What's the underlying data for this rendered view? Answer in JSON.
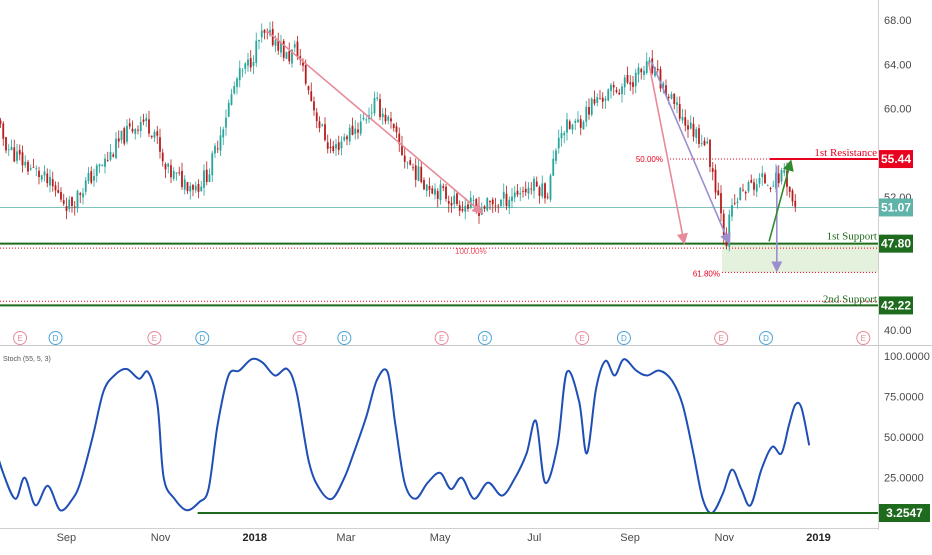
{
  "colors": {
    "bull": "#26a69a",
    "bear": "#b71c1c",
    "resistance": "#e8001e",
    "support": "#1e6b1e",
    "stoch": "#1f4fb5",
    "last_price": "#5fb3a8",
    "projection_down": "#e88a99",
    "projection_purple": "#9b8fd0",
    "projection_up": "#2e8b2e",
    "zone": "#e4f1dc"
  },
  "chart_data": [
    {
      "type": "candlestick",
      "title": "",
      "x_ticks": [
        "Sep",
        "Nov",
        "2018",
        "Mar",
        "May",
        "Jul",
        "Sep",
        "Nov",
        "2019"
      ],
      "y_ticks": [
        "68.00",
        "64.00",
        "60.00",
        "52.00",
        "40.00"
      ],
      "ylim": [
        40,
        68
      ],
      "grid": false,
      "series": [
        {
          "name": "",
          "close_path": [
            [
              "2017-07-15",
              59.5
            ],
            [
              "2017-07-25",
              56.5
            ],
            [
              "2017-08-05",
              55.0
            ],
            [
              "2017-08-15",
              54.0
            ],
            [
              "2017-08-25",
              52.5
            ],
            [
              "2017-09-03",
              51.2
            ],
            [
              "2017-09-15",
              53.5
            ],
            [
              "2017-09-28",
              55.5
            ],
            [
              "2017-10-08",
              57.5
            ],
            [
              "2017-10-20",
              59.0
            ],
            [
              "2017-10-28",
              58.0
            ],
            [
              "2017-11-03",
              54.5
            ],
            [
              "2017-11-15",
              53.5
            ],
            [
              "2017-11-25",
              53.0
            ],
            [
              "2017-12-03",
              54.5
            ],
            [
              "2017-12-10",
              58.0
            ],
            [
              "2017-12-20",
              62.5
            ],
            [
              "2017-12-28",
              64.0
            ],
            [
              "2018-01-05",
              66.5
            ],
            [
              "2018-01-15",
              66.2
            ],
            [
              "2018-01-22",
              64.5
            ],
            [
              "2018-01-28",
              65.5
            ],
            [
              "2018-02-05",
              61.5
            ],
            [
              "2018-02-12",
              58.5
            ],
            [
              "2018-02-20",
              56.0
            ],
            [
              "2018-02-28",
              57.5
            ],
            [
              "2018-03-10",
              58.5
            ],
            [
              "2018-03-20",
              60.5
            ],
            [
              "2018-03-28",
              59.0
            ],
            [
              "2018-04-08",
              55.5
            ],
            [
              "2018-04-20",
              53.5
            ],
            [
              "2018-05-01",
              52.5
            ],
            [
              "2018-05-12",
              51.5
            ],
            [
              "2018-05-25",
              51.0
            ],
            [
              "2018-06-08",
              51.5
            ],
            [
              "2018-06-20",
              52.5
            ],
            [
              "2018-07-01",
              53.0
            ],
            [
              "2018-07-10",
              52.5
            ],
            [
              "2018-07-17",
              58.0
            ],
            [
              "2018-07-28",
              58.5
            ],
            [
              "2018-08-08",
              60.5
            ],
            [
              "2018-08-20",
              61.5
            ],
            [
              "2018-09-01",
              62.5
            ],
            [
              "2018-09-13",
              63.8
            ],
            [
              "2018-09-20",
              62.5
            ],
            [
              "2018-09-28",
              60.5
            ],
            [
              "2018-10-08",
              58.5
            ],
            [
              "2018-10-20",
              57.0
            ],
            [
              "2018-10-25",
              54.0
            ],
            [
              "2018-10-30",
              51.0
            ],
            [
              "2018-11-02",
              47.8
            ],
            [
              "2018-11-05",
              50.5
            ],
            [
              "2018-11-12",
              52.5
            ],
            [
              "2018-11-25",
              53.5
            ],
            [
              "2018-12-05",
              53.5
            ],
            [
              "2018-12-10",
              54.5
            ],
            [
              "2018-12-15",
              51.5
            ],
            [
              "2018-12-18",
              51.07
            ]
          ]
        }
      ],
      "price_tags": [
        {
          "value": 55.44,
          "label": "55.44",
          "role": "resistance"
        },
        {
          "value": 51.07,
          "label": "51.07",
          "role": "last"
        },
        {
          "value": 47.8,
          "label": "47.80",
          "role": "support"
        },
        {
          "value": 42.22,
          "label": "42.22",
          "role": "support2"
        }
      ],
      "levels": [
        {
          "value": 55.44,
          "label": "1st Resistance",
          "style": "dotted-red"
        },
        {
          "value": 47.8,
          "label": "1st Support",
          "style": "solid-green"
        },
        {
          "value": 47.4,
          "label": "",
          "style": "dotted-red"
        },
        {
          "value": 42.6,
          "label": "",
          "style": "dotted-red"
        },
        {
          "value": 42.22,
          "label": "2nd Support",
          "style": "solid-green"
        }
      ],
      "fib_labels": [
        "50.00%",
        "100.00%",
        "61.80%"
      ],
      "events": [
        {
          "date": "2017-08-02",
          "label": "E"
        },
        {
          "date": "2017-08-25",
          "label": "D"
        },
        {
          "date": "2017-10-28",
          "label": "E"
        },
        {
          "date": "2017-11-28",
          "label": "D"
        },
        {
          "date": "2018-01-30",
          "label": "E"
        },
        {
          "date": "2018-02-28",
          "label": "D"
        },
        {
          "date": "2018-05-02",
          "label": "E"
        },
        {
          "date": "2018-05-30",
          "label": "D"
        },
        {
          "date": "2018-08-01",
          "label": "E"
        },
        {
          "date": "2018-08-28",
          "label": "D"
        },
        {
          "date": "2018-10-30",
          "label": "E"
        },
        {
          "date": "2018-11-28",
          "label": "D"
        },
        {
          "date": "2019-01-30",
          "label": "E"
        }
      ]
    },
    {
      "type": "line",
      "title": "Stoch (55, 5, 3)",
      "y_ticks": [
        "100.0000",
        "75.0000",
        "50.0000",
        "25.0000"
      ],
      "ylim": [
        0,
        100
      ],
      "series": [
        {
          "name": "",
          "points": [
            [
              "2017-07-15",
              50
            ],
            [
              "2017-07-22",
              28
            ],
            [
              "2017-07-30",
              12
            ],
            [
              "2017-08-05",
              25
            ],
            [
              "2017-08-12",
              8
            ],
            [
              "2017-08-20",
              20
            ],
            [
              "2017-08-28",
              5
            ],
            [
              "2017-09-05",
              12
            ],
            [
              "2017-09-10",
              22
            ],
            [
              "2017-09-18",
              50
            ],
            [
              "2017-09-25",
              78
            ],
            [
              "2017-10-02",
              88
            ],
            [
              "2017-10-10",
              92
            ],
            [
              "2017-10-18",
              86
            ],
            [
              "2017-10-24",
              90
            ],
            [
              "2017-10-30",
              70
            ],
            [
              "2017-11-03",
              25
            ],
            [
              "2017-11-10",
              12
            ],
            [
              "2017-11-18",
              5
            ],
            [
              "2017-11-26",
              10
            ],
            [
              "2017-12-02",
              18
            ],
            [
              "2017-12-08",
              58
            ],
            [
              "2017-12-15",
              88
            ],
            [
              "2017-12-22",
              91
            ],
            [
              "2017-12-30",
              98
            ],
            [
              "2018-01-06",
              96
            ],
            [
              "2018-01-14",
              88
            ],
            [
              "2018-01-22",
              92
            ],
            [
              "2018-01-28",
              78
            ],
            [
              "2018-02-05",
              35
            ],
            [
              "2018-02-12",
              18
            ],
            [
              "2018-02-20",
              12
            ],
            [
              "2018-02-28",
              25
            ],
            [
              "2018-03-06",
              40
            ],
            [
              "2018-03-14",
              62
            ],
            [
              "2018-03-21",
              85
            ],
            [
              "2018-03-28",
              90
            ],
            [
              "2018-04-02",
              58
            ],
            [
              "2018-04-08",
              22
            ],
            [
              "2018-04-15",
              12
            ],
            [
              "2018-04-23",
              22
            ],
            [
              "2018-05-01",
              28
            ],
            [
              "2018-05-08",
              18
            ],
            [
              "2018-05-15",
              25
            ],
            [
              "2018-05-23",
              12
            ],
            [
              "2018-06-01",
              22
            ],
            [
              "2018-06-10",
              14
            ],
            [
              "2018-06-18",
              24
            ],
            [
              "2018-06-26",
              40
            ],
            [
              "2018-07-02",
              60
            ],
            [
              "2018-07-08",
              22
            ],
            [
              "2018-07-16",
              45
            ],
            [
              "2018-07-22",
              90
            ],
            [
              "2018-07-30",
              72
            ],
            [
              "2018-08-04",
              40
            ],
            [
              "2018-08-10",
              80
            ],
            [
              "2018-08-16",
              97
            ],
            [
              "2018-08-22",
              88
            ],
            [
              "2018-08-28",
              98
            ],
            [
              "2018-09-05",
              91
            ],
            [
              "2018-09-12",
              88
            ],
            [
              "2018-09-20",
              91
            ],
            [
              "2018-09-28",
              85
            ],
            [
              "2018-10-05",
              70
            ],
            [
              "2018-10-12",
              40
            ],
            [
              "2018-10-18",
              12
            ],
            [
              "2018-10-24",
              3.25
            ],
            [
              "2018-10-31",
              15
            ],
            [
              "2018-11-06",
              30
            ],
            [
              "2018-11-12",
              18
            ],
            [
              "2018-11-18",
              8
            ],
            [
              "2018-11-25",
              30
            ],
            [
              "2018-12-02",
              44
            ],
            [
              "2018-12-08",
              40
            ],
            [
              "2018-12-13",
              58
            ],
            [
              "2018-12-17",
              70
            ],
            [
              "2018-12-21",
              68
            ],
            [
              "2018-12-26",
              45
            ]
          ]
        }
      ],
      "price_tags": [
        {
          "value": 3.2547,
          "label": "3.2547"
        }
      ],
      "support_line": {
        "start": "2017-11-25",
        "end": "2019-02-20",
        "value": 3.2547
      }
    }
  ]
}
